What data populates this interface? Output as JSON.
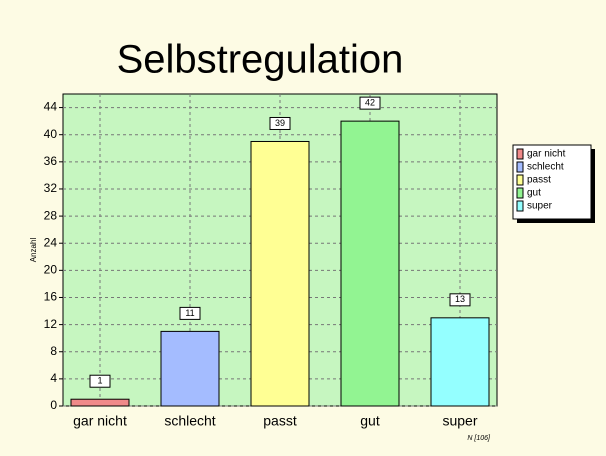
{
  "chart_data": {
    "type": "bar",
    "title": "Selbstregulation",
    "y_label": "Anzahl",
    "note": "N [106]",
    "categories": [
      "gar nicht",
      "schlecht",
      "passt",
      "gut",
      "super"
    ],
    "values": [
      1,
      11,
      39,
      42,
      13
    ],
    "colors": [
      "#f08a8a",
      "#a4bcff",
      "#ffff94",
      "#92f492",
      "#94ffff"
    ],
    "ylim": [
      0,
      46
    ],
    "yticks": [
      0,
      4,
      8,
      12,
      16,
      20,
      24,
      28,
      32,
      36,
      40,
      44
    ],
    "grid": true,
    "legend": "right"
  }
}
